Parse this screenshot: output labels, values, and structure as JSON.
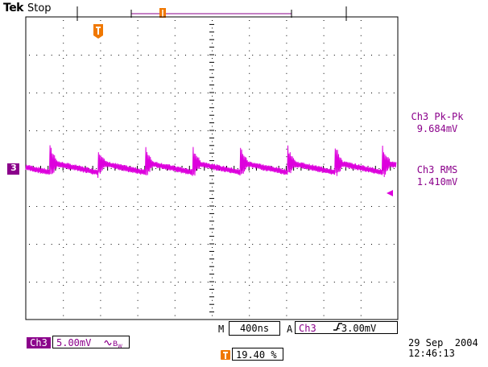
{
  "header": {
    "logo": "Tek",
    "acquisition_status": "Stop"
  },
  "colors": {
    "channel3": "#dd00dd",
    "channel3_label": "#8b008b",
    "trigger": "#f07800",
    "grid": "#000000"
  },
  "icons": {
    "trigger_marker": "trigger-t-icon",
    "ground_marker": "channel-3-marker-icon",
    "trigger_level": "trigger-level-arrow-icon"
  },
  "channel_marker": {
    "label": "3"
  },
  "measurements": [
    {
      "label": "Ch3 Pk-Pk",
      "value": "9.684mV"
    },
    {
      "label": "Ch3 RMS",
      "value": "1.410mV"
    }
  ],
  "timebase": {
    "prefix": "M",
    "value": "400ns"
  },
  "trigger": {
    "prefix": "A",
    "source": "Ch3",
    "slope_icon": "rising-edge-icon",
    "level": "-3.00mV",
    "position_icon": "T",
    "position": "19.40 %"
  },
  "channel": {
    "badge": "Ch3",
    "scale": "5.00mV",
    "coupling_icon": "ac-coupling-icon",
    "bw_icon": "bandwidth-limit-icon"
  },
  "datetime": {
    "date": "29 Sep  2004",
    "time": "12:46:13"
  }
}
